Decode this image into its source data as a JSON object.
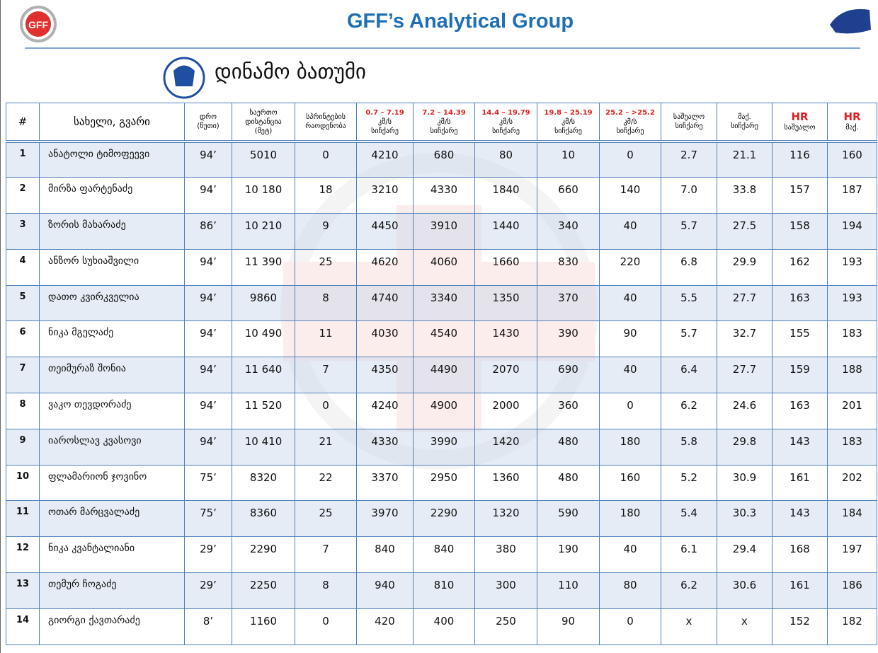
{
  "header": {
    "title": "GFF’s Analytical Group",
    "logo_text": "GFF"
  },
  "team": {
    "name": "დინამო ბათუმი"
  },
  "table": {
    "headers": [
      [
        "#"
      ],
      [
        "სახელი, გვარი"
      ],
      [
        "დრო",
        "(წუთი)"
      ],
      [
        "საერთო",
        "დისტანცია",
        "(მეტ)"
      ],
      [
        "სპრინტების",
        "რაოდენობა"
      ],
      [
        "0.7 – 7.19",
        "კმ/ს",
        "სიჩქარე"
      ],
      [
        "7.2 – 14.39",
        "კმ/ს",
        "სიჩქარე"
      ],
      [
        "14.4 – 19.79",
        "კმ/ს",
        "სიჩქარე"
      ],
      [
        "19.8 – 25.19",
        "კმ/ს",
        "სიჩქარე"
      ],
      [
        "25.2 – >25.2",
        "კმ/ს",
        "სიჩქარე"
      ],
      [
        "საშუალო",
        "სიჩქარე"
      ],
      [
        "მაქ.",
        "სიჩქარე"
      ],
      [
        "HR",
        "საშუალო"
      ],
      [
        "HR",
        "მაქ."
      ]
    ],
    "rows": [
      [
        "1",
        "ანატოლი ტიმოფეევი",
        "94’",
        "5010",
        "0",
        "4210",
        "680",
        "80",
        "10",
        "0",
        "2.7",
        "21.1",
        "116",
        "160"
      ],
      [
        "2",
        "მირზა ფარტენაძე",
        "94’",
        "10 180",
        "18",
        "3210",
        "4330",
        "1840",
        "660",
        "140",
        "7.0",
        "33.8",
        "157",
        "187"
      ],
      [
        "3",
        "ზორის მახარაძე",
        "86’",
        "10 210",
        "9",
        "4450",
        "3910",
        "1440",
        "340",
        "40",
        "5.7",
        "27.5",
        "158",
        "194"
      ],
      [
        "4",
        "ანზორ სუხიაშვილი",
        "94’",
        "11 390",
        "25",
        "4620",
        "4060",
        "1660",
        "830",
        "220",
        "6.8",
        "29.9",
        "162",
        "193"
      ],
      [
        "5",
        "დათო კვირკველია",
        "94’",
        "9860",
        "8",
        "4740",
        "3340",
        "1350",
        "370",
        "40",
        "5.5",
        "27.7",
        "163",
        "193"
      ],
      [
        "6",
        "ნიკა მგელაძე",
        "94’",
        "10 490",
        "11",
        "4030",
        "4540",
        "1430",
        "390",
        "90",
        "5.7",
        "32.7",
        "155",
        "183"
      ],
      [
        "7",
        "თეიმურაზ შონია",
        "94’",
        "11 640",
        "7",
        "4350",
        "4490",
        "2070",
        "690",
        "40",
        "6.4",
        "27.7",
        "159",
        "188"
      ],
      [
        "8",
        "ვაკო თევდორაძე",
        "94’",
        "11 520",
        "0",
        "4240",
        "4900",
        "2000",
        "360",
        "0",
        "6.2",
        "24.6",
        "163",
        "201"
      ],
      [
        "9",
        "იაროსლავ კვასოვი",
        "94’",
        "10 410",
        "21",
        "4330",
        "3990",
        "1420",
        "480",
        "180",
        "5.8",
        "29.8",
        "143",
        "183"
      ],
      [
        "10",
        "ფლამარიონ ჯოვინო",
        "75’",
        "8320",
        "22",
        "3370",
        "2950",
        "1360",
        "480",
        "160",
        "5.2",
        "30.9",
        "161",
        "202"
      ],
      [
        "11",
        "ოთარ მარცვალაძე",
        "75’",
        "8360",
        "25",
        "3970",
        "2290",
        "1320",
        "590",
        "180",
        "5.4",
        "30.3",
        "143",
        "184"
      ],
      [
        "12",
        "ნიკა კვანტალიანი",
        "29’",
        "2290",
        "7",
        "840",
        "840",
        "380",
        "190",
        "40",
        "6.1",
        "29.4",
        "168",
        "197"
      ],
      [
        "13",
        "თემურ ჩოგაძე",
        "29’",
        "2250",
        "8",
        "940",
        "810",
        "300",
        "110",
        "80",
        "6.2",
        "30.6",
        "161",
        "186"
      ],
      [
        "14",
        "გიორგი ქავთარაძე",
        "8’",
        "1160",
        "0",
        "420",
        "400",
        "250",
        "90",
        "0",
        "x",
        "x",
        "152",
        "182"
      ]
    ]
  }
}
